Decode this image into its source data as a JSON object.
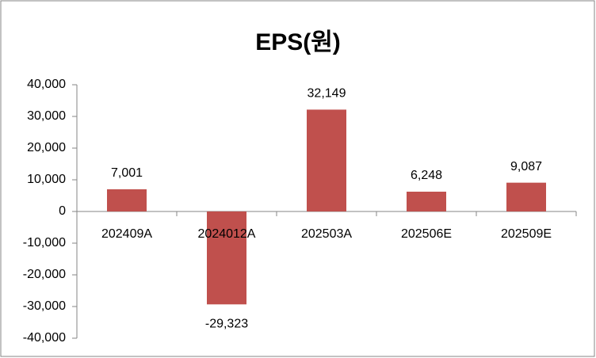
{
  "chart_data": {
    "type": "bar",
    "title": "EPS(원)",
    "categories": [
      "202409A",
      "2024012A",
      "202503A",
      "202506E",
      "202509E"
    ],
    "values": [
      7001,
      -29323,
      32149,
      6248,
      9087
    ],
    "value_labels": [
      "7,001",
      "-29,323",
      "32,149",
      "6,248",
      "9,087"
    ],
    "color": "#c0504d",
    "ylim": [
      -40000,
      40000
    ],
    "yticks": [
      {
        "value": -40000,
        "label": "-40,000"
      },
      {
        "value": -30000,
        "label": "-30,000"
      },
      {
        "value": -20000,
        "label": "-20,000"
      },
      {
        "value": -10000,
        "label": "-10,000"
      },
      0,
      {
        "value": 10000,
        "label": "10,000"
      },
      {
        "value": 20000,
        "label": "20,000"
      },
      {
        "value": 30000,
        "label": "30,000"
      },
      {
        "value": 40000,
        "label": "40,000"
      }
    ],
    "grid": false
  }
}
